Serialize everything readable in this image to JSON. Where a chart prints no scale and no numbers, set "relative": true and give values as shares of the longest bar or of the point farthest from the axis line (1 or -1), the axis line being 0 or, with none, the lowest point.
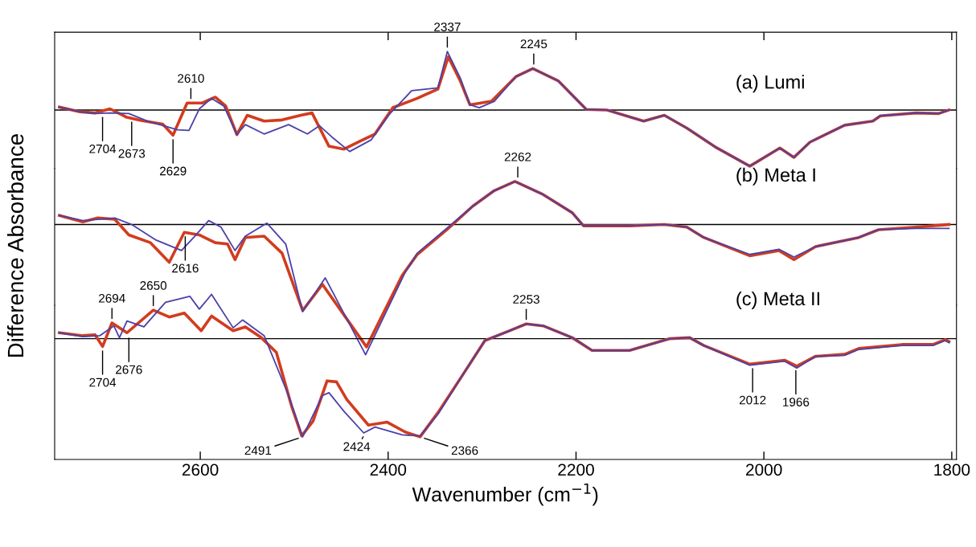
{
  "chart_data": [
    {
      "type": "line",
      "title": "(a) Lumi",
      "relative": true,
      "tick_labels": false,
      "grid": false,
      "marker": "none",
      "line_style": "solid",
      "xlim": [
        2755,
        1795
      ],
      "xticks": [
        2600,
        2400,
        2200,
        2000,
        1800
      ],
      "ref_lines": [
        {
          "axis": "y",
          "value": 0,
          "color": "#000000"
        }
      ],
      "series": [
        {
          "color": "#d23c1e",
          "x": [
            2750,
            2728,
            2712,
            2696,
            2679,
            2663,
            2640,
            2629,
            2614,
            2598,
            2584,
            2573,
            2561,
            2550,
            2532,
            2513,
            2493,
            2481,
            2463,
            2447,
            2431,
            2414,
            2395,
            2369,
            2347,
            2336,
            2323,
            2313,
            2290,
            2264,
            2246,
            2219,
            2189,
            2167,
            2128,
            2106,
            2082,
            2052,
            2015,
            1983,
            1968,
            1951,
            1914,
            1884,
            1876,
            1838,
            1814,
            1803
          ],
          "values": [
            0.05,
            -0.03,
            -0.05,
            0.02,
            -0.12,
            -0.18,
            -0.24,
            -0.43,
            0.12,
            0.12,
            0.22,
            0.07,
            -0.42,
            -0.09,
            -0.19,
            -0.17,
            -0.09,
            -0.05,
            -0.62,
            -0.67,
            -0.54,
            -0.41,
            0.04,
            0.2,
            0.36,
            0.91,
            0.49,
            0.09,
            0.15,
            0.57,
            0.71,
            0.5,
            0.01,
            0,
            -0.19,
            -0.09,
            -0.31,
            -0.63,
            -0.96,
            -0.65,
            -0.81,
            -0.55,
            -0.26,
            -0.19,
            -0.1,
            -0.05,
            -0.06,
            0
          ]
        },
        {
          "color": "#4b40aa",
          "x": [
            2750,
            2728,
            2712,
            2696,
            2676,
            2656,
            2624,
            2612,
            2601,
            2588,
            2575,
            2561,
            2552,
            2532,
            2506,
            2486,
            2473,
            2460,
            2441,
            2418,
            2398,
            2375,
            2347,
            2337,
            2323,
            2313,
            2303,
            2287,
            2264,
            2246,
            2219,
            2189,
            2167,
            2128,
            2106,
            2082,
            2052,
            2015,
            1983,
            1968,
            1951,
            1914,
            1884,
            1876,
            1838,
            1814,
            1803
          ],
          "values": [
            0.05,
            -0.03,
            -0.06,
            -0.05,
            -0.06,
            -0.19,
            -0.34,
            -0.35,
            0.02,
            0.2,
            0.07,
            -0.42,
            -0.25,
            -0.41,
            -0.25,
            -0.41,
            -0.27,
            -0.46,
            -0.71,
            -0.51,
            -0.06,
            0.33,
            0.38,
            1.0,
            0.54,
            0.09,
            0.04,
            0.15,
            0.57,
            0.71,
            0.5,
            0.01,
            0,
            -0.19,
            -0.09,
            -0.31,
            -0.63,
            -0.96,
            -0.65,
            -0.81,
            -0.55,
            -0.26,
            -0.19,
            -0.1,
            -0.05,
            -0.06,
            0
          ]
        }
      ],
      "annotations": [
        {
          "text": "2704",
          "x": 2704,
          "y": -0.05
        },
        {
          "text": "2673",
          "x": 2673,
          "y": -0.13
        },
        {
          "text": "2629",
          "x": 2629,
          "y": -0.43
        },
        {
          "text": "2610",
          "x": 2610,
          "y": 0.12
        },
        {
          "text": "2337",
          "x": 2337,
          "y": 1.0
        },
        {
          "text": "2245",
          "x": 2245,
          "y": 0.71
        }
      ]
    },
    {
      "type": "line",
      "title": "(b) Meta I",
      "ylabel": "Difference Absorbance",
      "relative": true,
      "tick_labels": false,
      "grid": false,
      "marker": "none",
      "line_style": "solid",
      "xlim": [
        2755,
        1795
      ],
      "ref_lines": [
        {
          "axis": "y",
          "value": 0,
          "color": "#000000"
        }
      ],
      "series": [
        {
          "color": "#d23c1e",
          "x": [
            2750,
            2725,
            2709,
            2691,
            2676,
            2653,
            2633,
            2617,
            2601,
            2584,
            2571,
            2563,
            2552,
            2532,
            2513,
            2491,
            2470,
            2423,
            2385,
            2369,
            2336,
            2310,
            2287,
            2265,
            2235,
            2204,
            2192,
            2143,
            2106,
            2082,
            2064,
            2015,
            1984,
            1968,
            1945,
            1899,
            1878,
            1838,
            1803
          ],
          "values": [
            0.07,
            0.02,
            0.05,
            0.04,
            -0.08,
            -0.14,
            -0.29,
            -0.06,
            -0.08,
            -0.14,
            -0.15,
            -0.27,
            -0.1,
            -0.09,
            -0.22,
            -0.66,
            -0.46,
            -0.94,
            -0.39,
            -0.23,
            -0.03,
            0.14,
            0.26,
            0.33,
            0.23,
            0.09,
            -0.01,
            -0.01,
            0,
            -0.02,
            -0.1,
            -0.24,
            -0.2,
            -0.27,
            -0.17,
            -0.1,
            -0.04,
            -0.02,
            0
          ]
        },
        {
          "color": "#4b40aa",
          "x": [
            2750,
            2725,
            2691,
            2673,
            2647,
            2620,
            2607,
            2591,
            2578,
            2563,
            2552,
            2529,
            2509,
            2491,
            2467,
            2424,
            2382,
            2369,
            2336,
            2310,
            2287,
            2265,
            2235,
            2204,
            2192,
            2143,
            2106,
            2082,
            2064,
            2015,
            1984,
            1968,
            1945,
            1899,
            1878,
            1838,
            1803
          ],
          "values": [
            0.07,
            0.03,
            0.05,
            0,
            -0.12,
            -0.2,
            -0.1,
            0.03,
            -0.02,
            -0.2,
            -0.09,
            0.01,
            -0.15,
            -0.67,
            -0.41,
            -1.0,
            -0.37,
            -0.22,
            -0.02,
            0.14,
            0.26,
            0.33,
            0.23,
            0.09,
            -0.01,
            -0.01,
            0,
            -0.02,
            -0.1,
            -0.23,
            -0.19,
            -0.25,
            -0.17,
            -0.1,
            -0.04,
            -0.03,
            -0.03
          ]
        }
      ],
      "annotations": [
        {
          "text": "2616",
          "x": 2616,
          "y": -0.06
        },
        {
          "text": "2262",
          "x": 2262,
          "y": 0.33
        }
      ]
    },
    {
      "type": "line",
      "title": "(c) Meta II",
      "xlabel": "Wavenumber (cm$^{−1}$)",
      "relative": true,
      "tick_labels": "x",
      "grid": false,
      "marker": "none",
      "line_style": "solid",
      "xlim": [
        2755,
        1795
      ],
      "xticks": [
        2600,
        2400,
        2200,
        2000,
        1800
      ],
      "ref_lines": [
        {
          "axis": "y",
          "value": 0,
          "color": "#000000"
        }
      ],
      "series": [
        {
          "color": "#d23c1e",
          "x": [
            2750,
            2725,
            2712,
            2704,
            2694,
            2678,
            2650,
            2633,
            2617,
            2599,
            2588,
            2565,
            2552,
            2535,
            2519,
            2503,
            2492,
            2480,
            2465,
            2455,
            2444,
            2421,
            2401,
            2382,
            2366,
            2346,
            2320,
            2297,
            2271,
            2253,
            2235,
            2204,
            2183,
            2143,
            2100,
            2079,
            2064,
            2015,
            1978,
            1965,
            1945,
            1914,
            1899,
            1853,
            1820,
            1807,
            1803
          ],
          "values": [
            0.06,
            0.03,
            0.04,
            -0.08,
            0.16,
            0.06,
            0.29,
            0.22,
            0.26,
            0.08,
            0.23,
            0.08,
            0.12,
            0.01,
            -0.14,
            -0.68,
            -0.99,
            -0.84,
            -0.43,
            -0.44,
            -0.62,
            -0.88,
            -0.85,
            -0.95,
            -1.0,
            -0.74,
            -0.36,
            -0.02,
            0.08,
            0.15,
            0.13,
            0.01,
            -0.12,
            -0.12,
            0,
            0.01,
            -0.07,
            -0.26,
            -0.22,
            -0.28,
            -0.18,
            -0.16,
            -0.1,
            -0.06,
            -0.06,
            -0.01,
            -0.03
          ]
        },
        {
          "color": "#4b40aa",
          "x": [
            2750,
            2725,
            2707,
            2692,
            2686,
            2678,
            2660,
            2637,
            2611,
            2601,
            2588,
            2565,
            2555,
            2532,
            2506,
            2491,
            2470,
            2463,
            2447,
            2426,
            2414,
            2385,
            2366,
            2347,
            2320,
            2297,
            2271,
            2253,
            2235,
            2204,
            2183,
            2143,
            2100,
            2079,
            2064,
            2015,
            1978,
            1965,
            1945,
            1914,
            1899,
            1853,
            1820,
            1807,
            1803
          ],
          "values": [
            0.06,
            0.02,
            0.03,
            0.13,
            0.01,
            0.18,
            0.12,
            0.37,
            0.43,
            0.3,
            0.45,
            0.11,
            0.19,
            0.03,
            -0.58,
            -1.0,
            -0.58,
            -0.55,
            -0.74,
            -0.96,
            -0.9,
            -0.98,
            -0.99,
            -0.77,
            -0.36,
            -0.02,
            0.08,
            0.15,
            0.13,
            0.01,
            -0.12,
            -0.12,
            0,
            0.01,
            -0.07,
            -0.27,
            -0.23,
            -0.3,
            -0.18,
            -0.17,
            -0.11,
            -0.07,
            -0.07,
            -0.02,
            -0.04
          ]
        }
      ],
      "annotations": [
        {
          "text": "2704",
          "x": 2704,
          "y": -0.08
        },
        {
          "text": "2694",
          "x": 2694,
          "y": 0.16
        },
        {
          "text": "2676",
          "x": 2676,
          "y": 0.05
        },
        {
          "text": "2650",
          "x": 2650,
          "y": 0.29
        },
        {
          "text": "2491",
          "x": 2491,
          "y": -1.0
        },
        {
          "text": "2424",
          "x": 2424,
          "y": -0.96
        },
        {
          "text": "2366",
          "x": 2366,
          "y": -1.0
        },
        {
          "text": "2253",
          "x": 2253,
          "y": 0.15
        },
        {
          "text": "2012",
          "x": 2012,
          "y": -0.26
        },
        {
          "text": "1966",
          "x": 1966,
          "y": -0.28
        }
      ]
    }
  ]
}
